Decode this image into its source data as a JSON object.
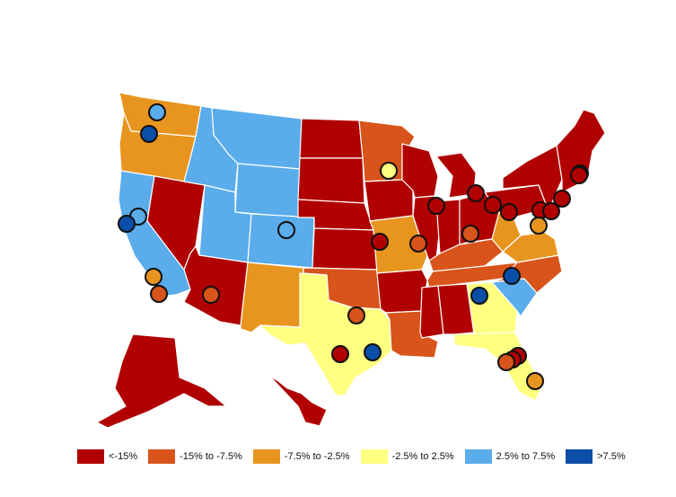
{
  "colors": {
    "lt_neg15": "#b00000",
    "neg15_neg7_5": "#d8541a",
    "neg7_5_neg2_5": "#e8951f",
    "neg2_5_2_5": "#ffff80",
    "pos2_5_7_5": "#5aacea",
    "gt_7_5": "#0b4ea8",
    "border": "#ffffff",
    "marker_outline": "#111111"
  },
  "legend": [
    {
      "key": "lt_neg15",
      "label": "<-15%",
      "color": "#b00000"
    },
    {
      "key": "neg15_neg7_5",
      "label": "-15% to -7.5%",
      "color": "#d8541a"
    },
    {
      "key": "neg7_5_neg2_5",
      "label": "-7.5% to -2.5%",
      "color": "#e8951f"
    },
    {
      "key": "neg2_5_2_5",
      "label": "-2.5% to 2.5%",
      "color": "#ffff80"
    },
    {
      "key": "pos2_5_7_5",
      "label": "2.5% to 7.5%",
      "color": "#5aacea"
    },
    {
      "key": "gt_7_5",
      "label": ">7.5%",
      "color": "#0b4ea8"
    }
  ],
  "states": [
    {
      "id": "WA",
      "cat": "neg7_5_neg2_5"
    },
    {
      "id": "OR",
      "cat": "neg7_5_neg2_5"
    },
    {
      "id": "CA",
      "cat": "pos2_5_7_5"
    },
    {
      "id": "NV",
      "cat": "lt_neg15"
    },
    {
      "id": "ID",
      "cat": "pos2_5_7_5"
    },
    {
      "id": "MT",
      "cat": "pos2_5_7_5"
    },
    {
      "id": "WY",
      "cat": "pos2_5_7_5"
    },
    {
      "id": "UT",
      "cat": "pos2_5_7_5"
    },
    {
      "id": "CO",
      "cat": "pos2_5_7_5"
    },
    {
      "id": "AZ",
      "cat": "lt_neg15"
    },
    {
      "id": "NM",
      "cat": "neg7_5_neg2_5"
    },
    {
      "id": "ND",
      "cat": "lt_neg15"
    },
    {
      "id": "SD",
      "cat": "lt_neg15"
    },
    {
      "id": "NE",
      "cat": "lt_neg15"
    },
    {
      "id": "KS",
      "cat": "lt_neg15"
    },
    {
      "id": "OK",
      "cat": "neg15_neg7_5"
    },
    {
      "id": "TX",
      "cat": "neg2_5_2_5"
    },
    {
      "id": "MN",
      "cat": "neg15_neg7_5"
    },
    {
      "id": "IA",
      "cat": "lt_neg15"
    },
    {
      "id": "MO",
      "cat": "neg7_5_neg2_5"
    },
    {
      "id": "AR",
      "cat": "lt_neg15"
    },
    {
      "id": "LA",
      "cat": "neg15_neg7_5"
    },
    {
      "id": "WI",
      "cat": "lt_neg15"
    },
    {
      "id": "IL",
      "cat": "lt_neg15"
    },
    {
      "id": "MI",
      "cat": "lt_neg15"
    },
    {
      "id": "IN",
      "cat": "lt_neg15"
    },
    {
      "id": "OH",
      "cat": "lt_neg15"
    },
    {
      "id": "KY",
      "cat": "neg15_neg7_5"
    },
    {
      "id": "TN",
      "cat": "neg15_neg7_5"
    },
    {
      "id": "MS",
      "cat": "lt_neg15"
    },
    {
      "id": "AL",
      "cat": "lt_neg15"
    },
    {
      "id": "GA",
      "cat": "neg2_5_2_5"
    },
    {
      "id": "FL",
      "cat": "neg2_5_2_5"
    },
    {
      "id": "SC",
      "cat": "pos2_5_7_5"
    },
    {
      "id": "NC",
      "cat": "neg15_neg7_5"
    },
    {
      "id": "VA",
      "cat": "neg7_5_neg2_5"
    },
    {
      "id": "WV",
      "cat": "neg7_5_neg2_5"
    },
    {
      "id": "PA",
      "cat": "lt_neg15"
    },
    {
      "id": "NY",
      "cat": "lt_neg15"
    },
    {
      "id": "NE_US",
      "cat": "lt_neg15"
    },
    {
      "id": "AK",
      "cat": "lt_neg15"
    },
    {
      "id": "HI",
      "cat": "lt_neg15"
    }
  ],
  "cities": [
    {
      "cat": "pos2_5_7_5"
    },
    {
      "cat": "gt_7_5"
    },
    {
      "cat": "pos2_5_7_5"
    },
    {
      "cat": "gt_7_5"
    },
    {
      "cat": "neg7_5_neg2_5"
    },
    {
      "cat": "neg15_neg7_5"
    },
    {
      "cat": "neg15_neg7_5"
    },
    {
      "cat": "pos2_5_7_5"
    },
    {
      "cat": "neg2_5_2_5"
    },
    {
      "cat": "lt_neg15"
    },
    {
      "cat": "neg15_neg7_5"
    },
    {
      "cat": "lt_neg15"
    },
    {
      "cat": "lt_neg15"
    },
    {
      "cat": "neg15_neg7_5"
    },
    {
      "cat": "neg15_neg7_5"
    },
    {
      "cat": "lt_neg15"
    },
    {
      "cat": "gt_7_5"
    },
    {
      "cat": "lt_neg15"
    },
    {
      "cat": "lt_neg15"
    },
    {
      "cat": "lt_neg15"
    },
    {
      "cat": "lt_neg15"
    },
    {
      "cat": "lt_neg15"
    },
    {
      "cat": "lt_neg15"
    },
    {
      "cat": "lt_neg15"
    },
    {
      "cat": "neg7_5_neg2_5"
    },
    {
      "cat": "gt_7_5"
    },
    {
      "cat": "gt_7_5"
    },
    {
      "cat": "lt_neg15"
    },
    {
      "cat": "lt_neg15"
    },
    {
      "cat": "neg15_neg7_5"
    },
    {
      "cat": "neg7_5_neg2_5"
    }
  ]
}
